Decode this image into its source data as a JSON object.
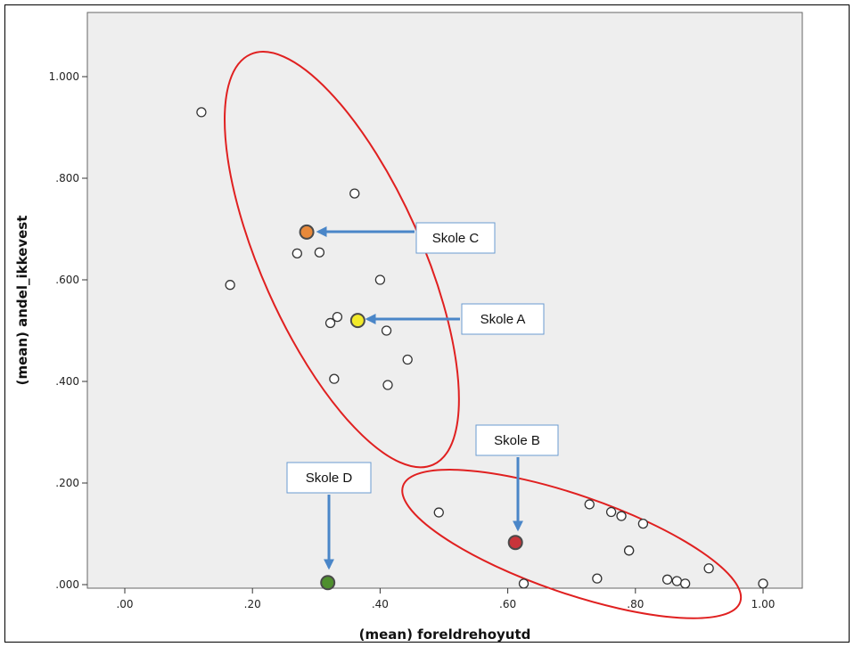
{
  "chart_data": {
    "type": "scatter",
    "xlabel": "(mean) foreldrehoyutd",
    "ylabel": "(mean) andel_ikkevest",
    "xlim": [
      -0.05,
      1.02
    ],
    "ylim": [
      -0.01,
      1.1
    ],
    "x_ticks": [
      {
        "value": 0.0,
        "label": ".00"
      },
      {
        "value": 0.2,
        "label": ".20"
      },
      {
        "value": 0.4,
        "label": ".40"
      },
      {
        "value": 0.6,
        "label": ".60"
      },
      {
        "value": 0.8,
        "label": ".80"
      },
      {
        "value": 1.0,
        "label": "1.00"
      }
    ],
    "y_ticks": [
      {
        "value": 0.0,
        "label": ".000"
      },
      {
        "value": 0.2,
        "label": ".200"
      },
      {
        "value": 0.4,
        "label": ".400"
      },
      {
        "value": 0.6,
        "label": ".600"
      },
      {
        "value": 0.8,
        "label": ".800"
      },
      {
        "value": 1.0,
        "label": "1.000"
      }
    ],
    "grid": false,
    "plot_background": "#eeeeee",
    "points": [
      {
        "x": 0.12,
        "y": 0.93
      },
      {
        "x": 0.165,
        "y": 0.59
      },
      {
        "x": 0.27,
        "y": 0.652
      },
      {
        "x": 0.305,
        "y": 0.654
      },
      {
        "x": 0.36,
        "y": 0.77
      },
      {
        "x": 0.4,
        "y": 0.6
      },
      {
        "x": 0.322,
        "y": 0.515
      },
      {
        "x": 0.333,
        "y": 0.527
      },
      {
        "x": 0.41,
        "y": 0.5
      },
      {
        "x": 0.443,
        "y": 0.443
      },
      {
        "x": 0.328,
        "y": 0.405
      },
      {
        "x": 0.412,
        "y": 0.393
      },
      {
        "x": 0.492,
        "y": 0.142
      },
      {
        "x": 0.625,
        "y": 0.002
      },
      {
        "x": 0.728,
        "y": 0.158
      },
      {
        "x": 0.762,
        "y": 0.143
      },
      {
        "x": 0.778,
        "y": 0.135
      },
      {
        "x": 0.812,
        "y": 0.12
      },
      {
        "x": 0.79,
        "y": 0.067
      },
      {
        "x": 0.79,
        "y": 0.067
      },
      {
        "x": 0.74,
        "y": 0.012
      },
      {
        "x": 0.85,
        "y": 0.01
      },
      {
        "x": 0.865,
        "y": 0.007
      },
      {
        "x": 0.878,
        "y": 0.002
      },
      {
        "x": 0.915,
        "y": 0.032
      },
      {
        "x": 1.0,
        "y": 0.002
      }
    ],
    "highlighted_points": [
      {
        "label": "Skole C",
        "x": 0.285,
        "y": 0.694,
        "color": "#e8893a"
      },
      {
        "label": "Skole A",
        "x": 0.365,
        "y": 0.52,
        "color": "#f2ea2a"
      },
      {
        "label": "Skole B",
        "x": 0.612,
        "y": 0.083,
        "color": "#c8343a"
      },
      {
        "label": "Skole D",
        "x": 0.318,
        "y": 0.004,
        "color": "#4f8f2e"
      }
    ],
    "ellipses": [
      {
        "cx": 0.34,
        "cy": 0.64,
        "color": "#e02020"
      },
      {
        "cx": 0.7,
        "cy": 0.08,
        "color": "#e02020"
      }
    ],
    "arrow_color": "#4a86c8",
    "annotation_box_border": "#6a9bd0"
  }
}
